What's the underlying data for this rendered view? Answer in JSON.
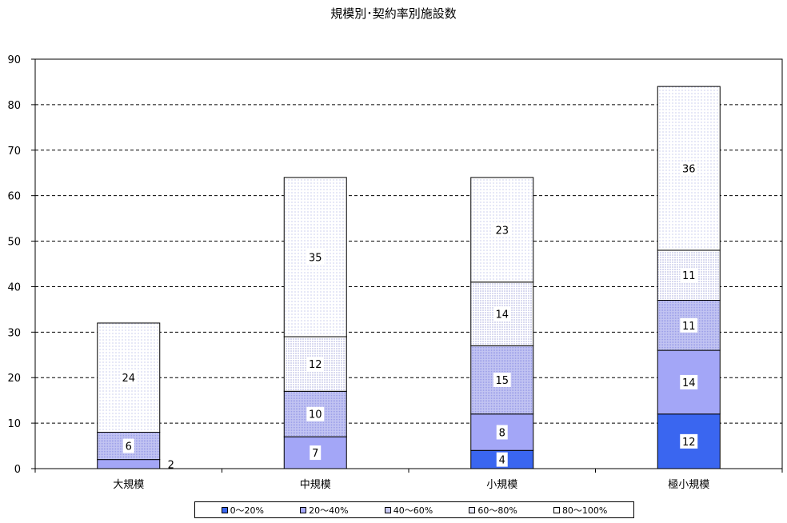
{
  "chart_data": {
    "type": "bar",
    "stacked": true,
    "title": "規模別･契約率別施設数",
    "categories": [
      "大規模",
      "中規模",
      "小規模",
      "極小規模"
    ],
    "series": [
      {
        "name": "0～20%",
        "values": [
          0,
          0,
          4,
          12
        ],
        "color": "#3a66f0",
        "labels": [
          "",
          "",
          "4",
          "12"
        ]
      },
      {
        "name": "20～40%",
        "values": [
          2,
          7,
          8,
          14
        ],
        "color": "#a3a6f7",
        "labels": [
          "2",
          "7",
          "8",
          "14"
        ]
      },
      {
        "name": "40～60%",
        "values": [
          6,
          10,
          15,
          11
        ],
        "color": "#c6c8f3",
        "labels": [
          "6",
          "10",
          "15",
          "11"
        ]
      },
      {
        "name": "60～80%",
        "values": [
          0,
          12,
          14,
          11
        ],
        "color": "#e4e5f7",
        "labels": [
          "",
          "12",
          "14",
          "11"
        ]
      },
      {
        "name": "80～100%",
        "values": [
          24,
          35,
          23,
          36
        ],
        "color": "#f2f3fb",
        "labels": [
          "24",
          "35",
          "23",
          "36"
        ]
      }
    ],
    "ylim": [
      0,
      90
    ],
    "yticks": [
      0,
      10,
      20,
      30,
      40,
      50,
      60,
      70,
      80,
      90
    ],
    "grid": "dashed-horizontal",
    "legend_position": "bottom"
  }
}
